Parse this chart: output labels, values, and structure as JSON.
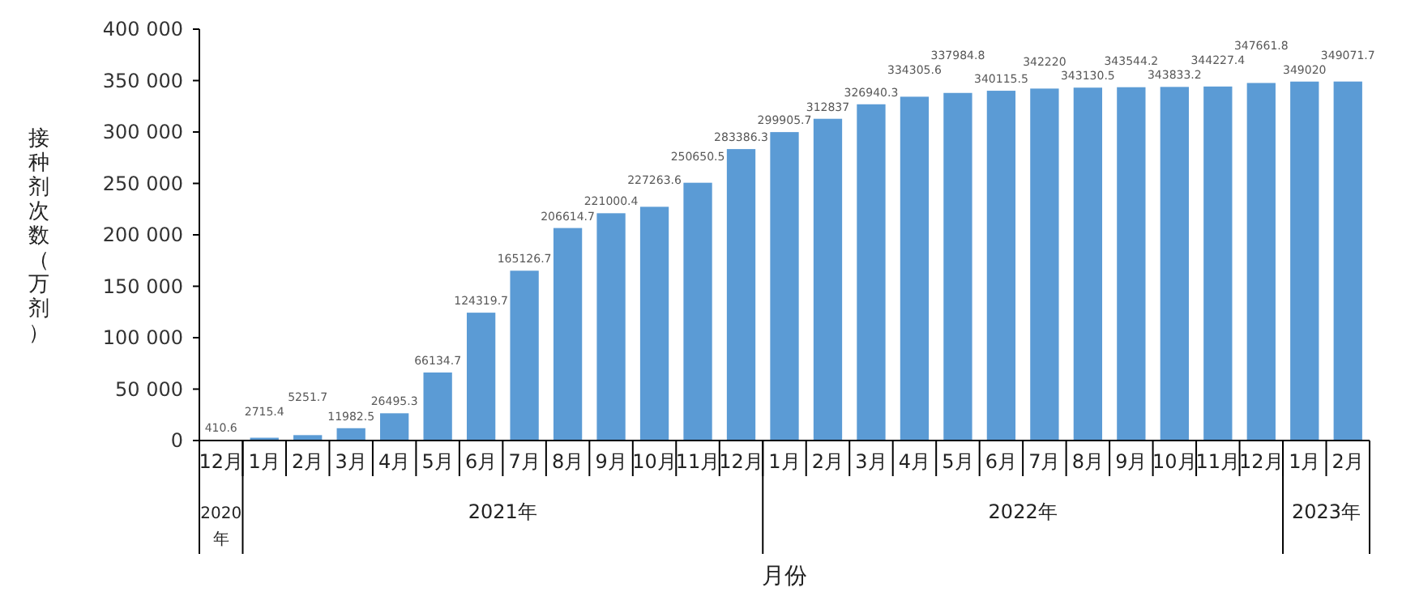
{
  "chart_data": {
    "type": "bar",
    "xlabel": "月份",
    "ylabel": "接种剂次数（万剂）",
    "categories": [
      "12月",
      "1月",
      "2月",
      "3月",
      "4月",
      "5月",
      "6月",
      "7月",
      "8月",
      "9月",
      "10月",
      "11月",
      "12月",
      "1月",
      "2月",
      "3月",
      "4月",
      "5月",
      "6月",
      "7月",
      "8月",
      "9月",
      "10月",
      "11月",
      "12月",
      "1月",
      "2月"
    ],
    "values": [
      410.6,
      2715.4,
      5251.7,
      11982.5,
      26495.3,
      66134.7,
      124319.7,
      165126.7,
      206614.7,
      221000.4,
      227263.6,
      250650.5,
      283386.3,
      299905.7,
      312837,
      326940.3,
      334305.6,
      337984.8,
      340115.5,
      342220,
      343130.5,
      343544.2,
      343833.2,
      344227.4,
      347661.8,
      349020,
      349071.7
    ],
    "color": "#5b9bd5",
    "data_labels": true,
    "grid": false,
    "ylim": [
      0,
      400000
    ],
    "yticks": [
      0,
      {
        "value": 50000,
        "label": "50 000"
      },
      {
        "value": 100000,
        "label": "100 000"
      },
      {
        "value": 150000,
        "label": "150 000"
      },
      {
        "value": 200000,
        "label": "200 000"
      },
      {
        "value": 250000,
        "label": "250 000"
      },
      {
        "value": 300000,
        "label": "300 000"
      },
      {
        "value": 350000,
        "label": "350 000"
      },
      {
        "value": 400000,
        "label": "400 000"
      }
    ],
    "annotations": [
      "2020年",
      "2021年",
      "2022年",
      "2023年"
    ]
  }
}
